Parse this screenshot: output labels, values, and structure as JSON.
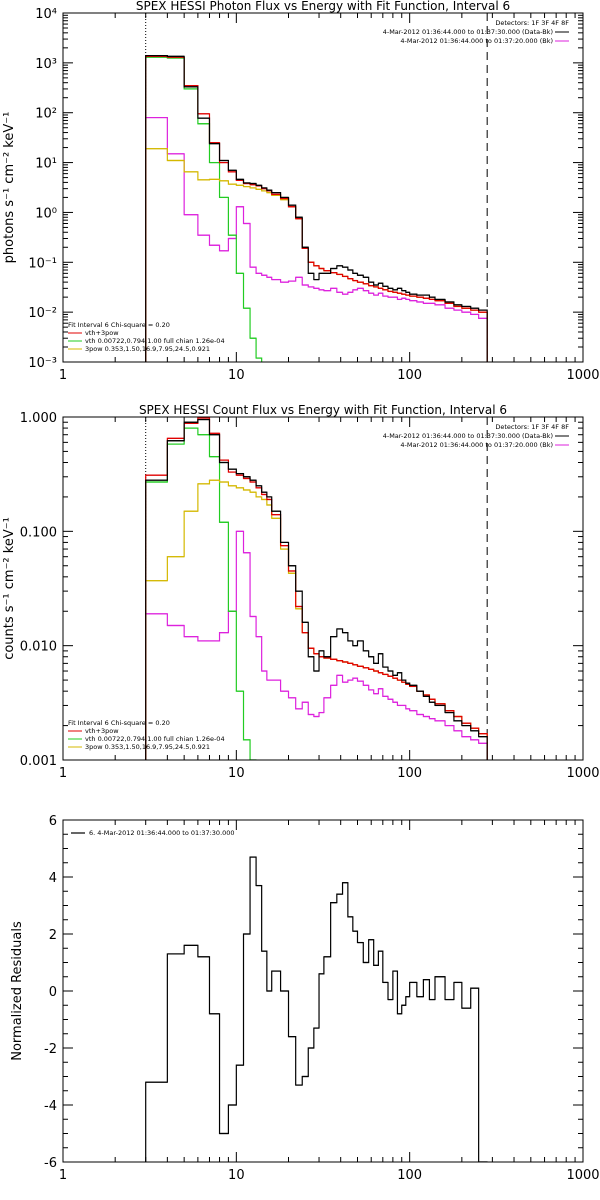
{
  "colors": {
    "observed": "#000000",
    "total": "#e00000",
    "vth": "#22cc22",
    "apow": "#d4b800",
    "background": "#dd22dd"
  },
  "chart_data": [
    {
      "type": "line",
      "title": "SPEX HESSI Photon Flux vs Energy with Fit Function, Interval 6",
      "xlabel": "",
      "ylabel": "photons s⁻¹ cm⁻² keV⁻¹",
      "xscale": "log",
      "yscale": "log",
      "xlim": [
        1,
        1000
      ],
      "ylim": [
        0.001,
        10000
      ],
      "x_ticks": [
        1,
        10,
        100,
        1000
      ],
      "x_tick_labels": [
        "1",
        "10",
        "100",
        "1000"
      ],
      "y_ticks": [
        0.001,
        0.01,
        0.1,
        1,
        10,
        100,
        1000,
        10000
      ],
      "y_tick_labels": [
        "10⁻³",
        "10⁻²",
        "10⁻¹",
        "10⁰",
        "10¹",
        "10²",
        "10³",
        "10⁴"
      ],
      "vline_dotted": 3,
      "vline_dashed": 280,
      "legend_top_right": [
        "Detectors: 1F 3F 4F 8F",
        "4-Mar-2012 01:36:44.000 to 01:37:30.000 (Data-Bk)",
        "4-Mar-2012 01:36:44.000 to 01:37:20.000 (Bk)"
      ],
      "legend_bottom_left": [
        "Fit Interval 6   Chi-square = 0.20",
        "vth+3pow",
        "vth 0.00722,0.794,1.00  full chian 1.26e-04",
        "3pow 0.353,1.50,16.9,7.95,24.5,0.921"
      ],
      "edges": [
        3,
        4,
        5,
        6,
        7,
        8,
        9,
        10,
        11,
        12,
        13,
        14,
        15,
        16,
        18,
        20,
        22,
        24,
        26,
        28,
        30,
        32,
        35,
        38,
        41,
        44,
        47,
        50,
        54,
        58,
        62,
        66,
        70,
        75,
        80,
        85,
        90,
        95,
        100,
        110,
        120,
        130,
        140,
        160,
        180,
        200,
        225,
        250,
        280
      ],
      "series": [
        {
          "color_key": "observed",
          "values": [
            1400,
            1350,
            330,
            78,
            24,
            11,
            7,
            4.6,
            3.9,
            3.8,
            3.5,
            3.1,
            2.8,
            2.5,
            2.0,
            1.4,
            0.8,
            0.2,
            0.06,
            0.045,
            0.06,
            0.06,
            0.075,
            0.085,
            0.08,
            0.07,
            0.06,
            0.055,
            0.05,
            0.04,
            0.035,
            0.038,
            0.033,
            0.03,
            0.028,
            0.03,
            0.027,
            0.025,
            0.023,
            0.022,
            0.022,
            0.02,
            0.018,
            0.016,
            0.014,
            0.013,
            0.012,
            0.011
          ]
        },
        {
          "color_key": "total",
          "values": [
            1350,
            1300,
            350,
            95,
            25,
            10,
            6.5,
            4.4,
            3.8,
            3.6,
            3.4,
            3.0,
            2.7,
            2.3,
            1.9,
            1.3,
            0.75,
            0.19,
            0.1,
            0.085,
            0.075,
            0.068,
            0.062,
            0.057,
            0.052,
            0.047,
            0.043,
            0.04,
            0.037,
            0.034,
            0.032,
            0.03,
            0.028,
            0.026,
            0.025,
            0.024,
            0.023,
            0.022,
            0.021,
            0.02,
            0.019,
            0.018,
            0.017,
            0.015,
            0.013,
            0.012,
            0.011,
            0.01
          ]
        },
        {
          "color_key": "vth",
          "values": [
            1300,
            1250,
            300,
            60,
            10,
            2.0,
            0.35,
            0.06,
            0.012,
            0.003,
            0.0012
          ]
        },
        {
          "color_key": "apow",
          "values": [
            19,
            11,
            6.5,
            4.5,
            4.6,
            4.3,
            3.7,
            3.5,
            3.3,
            3.1,
            2.9,
            2.7,
            2.5,
            2.2,
            1.8,
            1.3,
            0.75,
            0.19,
            0.1,
            0.085,
            0.075,
            0.068,
            0.062,
            0.057,
            0.052,
            0.047,
            0.043,
            0.04,
            0.037,
            0.034,
            0.032,
            0.03,
            0.028,
            0.026,
            0.025,
            0.024,
            0.023,
            0.022,
            0.021,
            0.02,
            0.019,
            0.018,
            0.017,
            0.015,
            0.013,
            0.012,
            0.011,
            0.01
          ]
        },
        {
          "color_key": "background",
          "values": [
            80,
            15,
            0.9,
            0.35,
            0.22,
            0.17,
            0.3,
            1.3,
            0.6,
            0.08,
            0.06,
            0.055,
            0.05,
            0.045,
            0.04,
            0.042,
            0.05,
            0.035,
            0.032,
            0.03,
            0.028,
            0.027,
            0.03,
            0.025,
            0.023,
            0.025,
            0.028,
            0.03,
            0.027,
            0.024,
            0.022,
            0.024,
            0.021,
            0.02,
            0.02,
            0.018,
            0.019,
            0.018,
            0.017,
            0.016,
            0.015,
            0.015,
            0.014,
            0.012,
            0.011,
            0.01,
            0.009,
            0.0075
          ]
        }
      ]
    },
    {
      "type": "line",
      "title": "SPEX HESSI Count Flux vs Energy with Fit Function, Interval 6",
      "xlabel": "",
      "ylabel": "counts s⁻¹ cm⁻² keV⁻¹",
      "xscale": "log",
      "yscale": "log",
      "xlim": [
        1,
        1000
      ],
      "ylim": [
        0.001,
        1.0
      ],
      "x_ticks": [
        1,
        10,
        100,
        1000
      ],
      "x_tick_labels": [
        "1",
        "10",
        "100",
        "1000"
      ],
      "y_ticks": [
        0.001,
        0.01,
        0.1,
        1.0
      ],
      "y_tick_labels": [
        "0.001",
        "0.010",
        "0.100",
        "1.000"
      ],
      "vline_dotted": 3,
      "vline_dashed": 280,
      "legend_top_right": [
        "Detectors: 1F 3F 4F 8F",
        "4-Mar-2012 01:36:44.000 to 01:37:30.000 (Data-Bk)",
        "4-Mar-2012 01:36:44.000 to 01:37:20.000 (Bk)"
      ],
      "legend_bottom_left": [
        "Fit Interval 6   Chi-square = 0.20",
        "vth+3pow",
        "vth 0.00722,0.794,1.00  full chian 1.26e-04",
        "3pow 0.353,1.50,16.9,7.95,24.5,0.921"
      ],
      "edges": [
        3,
        4,
        5,
        6,
        7,
        8,
        9,
        10,
        11,
        12,
        13,
        14,
        15,
        16,
        18,
        20,
        22,
        24,
        26,
        28,
        30,
        32,
        35,
        38,
        41,
        44,
        47,
        50,
        54,
        58,
        62,
        66,
        70,
        75,
        80,
        85,
        90,
        95,
        100,
        110,
        120,
        130,
        140,
        160,
        180,
        200,
        225,
        250,
        280
      ],
      "series": [
        {
          "color_key": "observed",
          "values": [
            0.28,
            0.62,
            0.9,
            0.95,
            0.7,
            0.4,
            0.35,
            0.32,
            0.3,
            0.28,
            0.25,
            0.22,
            0.2,
            0.15,
            0.08,
            0.05,
            0.03,
            0.016,
            0.008,
            0.006,
            0.009,
            0.008,
            0.012,
            0.014,
            0.013,
            0.011,
            0.01,
            0.011,
            0.009,
            0.008,
            0.007,
            0.0085,
            0.0065,
            0.006,
            0.0055,
            0.0058,
            0.005,
            0.0047,
            0.0045,
            0.004,
            0.0036,
            0.0032,
            0.003,
            0.0026,
            0.0022,
            0.002,
            0.0018,
            0.0016
          ]
        },
        {
          "color_key": "total",
          "values": [
            0.31,
            0.65,
            0.88,
            0.98,
            0.72,
            0.42,
            0.33,
            0.31,
            0.29,
            0.27,
            0.24,
            0.21,
            0.19,
            0.14,
            0.075,
            0.045,
            0.022,
            0.013,
            0.0095,
            0.0085,
            0.008,
            0.0078,
            0.0076,
            0.0074,
            0.0072,
            0.007,
            0.0068,
            0.0066,
            0.0064,
            0.0062,
            0.006,
            0.0058,
            0.0056,
            0.0054,
            0.0052,
            0.005,
            0.0048,
            0.0046,
            0.0044,
            0.004,
            0.0037,
            0.0034,
            0.0031,
            0.0027,
            0.0024,
            0.0021,
            0.0019,
            0.0017
          ]
        },
        {
          "color_key": "vth",
          "values": [
            0.27,
            0.58,
            0.8,
            0.7,
            0.45,
            0.12,
            0.02,
            0.004,
            0.0015,
            0.0009
          ]
        },
        {
          "color_key": "apow",
          "values": [
            0.037,
            0.06,
            0.15,
            0.26,
            0.28,
            0.27,
            0.25,
            0.24,
            0.23,
            0.22,
            0.2,
            0.19,
            0.17,
            0.13,
            0.07,
            0.043,
            0.021,
            0.013,
            0.0095,
            0.0085,
            0.008,
            0.0078,
            0.0076,
            0.0074,
            0.0072,
            0.007,
            0.0068,
            0.0066,
            0.0064,
            0.0062,
            0.006,
            0.0058,
            0.0056,
            0.0054,
            0.0052,
            0.005,
            0.0048,
            0.0046,
            0.0044,
            0.004,
            0.0037,
            0.0034,
            0.0031,
            0.0027,
            0.0024,
            0.0021,
            0.0019,
            0.0017
          ]
        },
        {
          "color_key": "background",
          "values": [
            0.019,
            0.015,
            0.012,
            0.011,
            0.011,
            0.013,
            0.02,
            0.1,
            0.065,
            0.018,
            0.012,
            0.006,
            0.005,
            0.005,
            0.004,
            0.0035,
            0.0028,
            0.0032,
            0.0025,
            0.0024,
            0.0026,
            0.0035,
            0.0045,
            0.0055,
            0.0048,
            0.005,
            0.0052,
            0.0049,
            0.0045,
            0.0041,
            0.0038,
            0.0042,
            0.0036,
            0.0034,
            0.0032,
            0.003,
            0.003,
            0.0028,
            0.0027,
            0.0025,
            0.0024,
            0.0023,
            0.0022,
            0.002,
            0.0018,
            0.0016,
            0.0015,
            0.0014
          ]
        }
      ]
    },
    {
      "type": "line",
      "title": "",
      "xlabel": "",
      "ylabel": "Normalized Residuals",
      "xscale": "log",
      "yscale": "linear",
      "xlim": [
        1,
        1000
      ],
      "ylim": [
        -6,
        6
      ],
      "x_ticks": [
        1,
        10,
        100,
        1000
      ],
      "x_tick_labels": [
        "1",
        "10",
        "100",
        "1000"
      ],
      "y_ticks": [
        -6,
        -4,
        -2,
        0,
        2,
        4,
        6
      ],
      "y_tick_labels": [
        "-6",
        "-4",
        "-2",
        "0",
        "2",
        "4",
        "6"
      ],
      "legend_top_left": [
        "6. 4-Mar-2012 01:36:44.000 to 01:37:30.000"
      ],
      "edges": [
        3,
        4,
        5,
        6,
        7,
        8,
        9,
        10,
        11,
        12,
        13,
        14,
        15,
        16,
        18,
        20,
        22,
        24,
        26,
        28,
        30,
        32,
        35,
        38,
        41,
        44,
        47,
        50,
        54,
        58,
        62,
        66,
        70,
        75,
        80,
        85,
        90,
        95,
        100,
        110,
        120,
        130,
        140,
        160,
        180,
        200,
        225,
        250,
        280
      ],
      "series": [
        {
          "color_key": "observed",
          "values": [
            -3.2,
            1.3,
            1.6,
            1.2,
            -0.8,
            -5.0,
            -4.0,
            -2.6,
            2.0,
            4.7,
            3.7,
            1.4,
            0.0,
            0.7,
            0.0,
            -1.6,
            -3.3,
            -3.0,
            -2.0,
            -1.3,
            0.6,
            1.2,
            3.1,
            3.4,
            3.8,
            2.6,
            2.1,
            1.7,
            1.0,
            1.8,
            0.9,
            1.4,
            0.3,
            -0.3,
            0.7,
            -0.8,
            -0.5,
            -0.2,
            0.3,
            -0.2,
            0.4,
            -0.3,
            0.5,
            -0.3,
            0.3,
            -0.6,
            0.1,
            -6.0
          ]
        }
      ]
    }
  ]
}
